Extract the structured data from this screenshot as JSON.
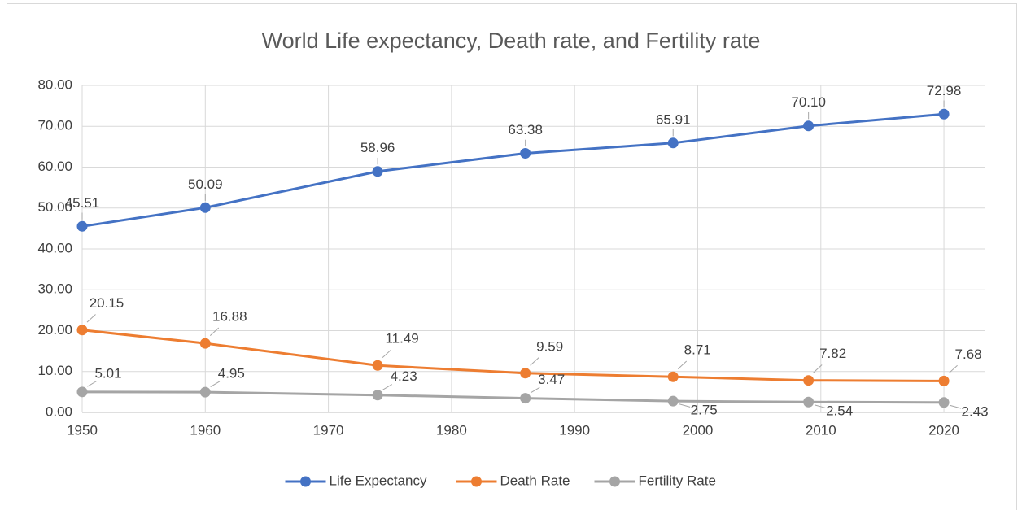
{
  "chart_data": {
    "type": "line",
    "title": "World Life expectancy, Death rate, and Fertility rate",
    "x": [
      1950,
      1960,
      1974,
      1986,
      1998,
      2009,
      2020
    ],
    "series": [
      {
        "name": "Life Expectancy",
        "color": "#4472c4",
        "values": [
          45.51,
          50.09,
          58.96,
          63.38,
          65.91,
          70.1,
          72.98
        ],
        "value_labels": [
          "45.51",
          "50.09",
          "58.96",
          "63.38",
          "65.91",
          "70.10",
          "72.98"
        ]
      },
      {
        "name": "Death Rate",
        "color": "#ed7d31",
        "values": [
          20.15,
          16.88,
          11.49,
          9.59,
          8.71,
          7.82,
          7.68
        ],
        "value_labels": [
          "20.15",
          "16.88",
          "11.49",
          "9.59",
          "8.71",
          "7.82",
          "7.68"
        ]
      },
      {
        "name": "Fertility Rate",
        "color": "#a5a5a5",
        "values": [
          5.01,
          4.95,
          4.23,
          3.47,
          2.75,
          2.54,
          2.43
        ],
        "value_labels": [
          "5.01",
          "4.95",
          "4.23",
          "3.47",
          "2.75",
          "2.54",
          "2.43"
        ]
      }
    ],
    "xlim": [
      1950,
      2023.3
    ],
    "xticks": [
      1950,
      1960,
      1970,
      1980,
      1990,
      2000,
      2010,
      2020
    ],
    "ylim": [
      0,
      80
    ],
    "yticks": [
      {
        "value": 0,
        "label": "0.00"
      },
      {
        "value": 10,
        "label": "10.00"
      },
      {
        "value": 20,
        "label": "20.00"
      },
      {
        "value": 30,
        "label": "30.00"
      },
      {
        "value": 40,
        "label": "40.00"
      },
      {
        "value": 50,
        "label": "50.00"
      },
      {
        "value": 60,
        "label": "60.00"
      },
      {
        "value": 70,
        "label": "70.00"
      },
      {
        "value": 80,
        "label": "80.00"
      }
    ],
    "grid": true,
    "legend": "bottom"
  }
}
